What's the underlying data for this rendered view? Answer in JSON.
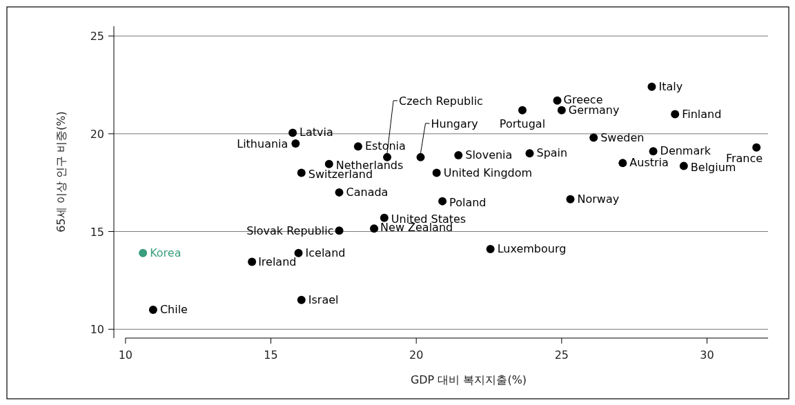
{
  "chart_data": {
    "type": "scatter",
    "xlabel": "GDP 대비 복지지출(%)",
    "ylabel": "65세 이상 인구 비중(%)",
    "xlim": [
      9.6,
      32.1
    ],
    "ylim": [
      9.55,
      25.5
    ],
    "xticks": [
      10,
      15,
      20,
      25,
      30
    ],
    "yticks": [
      10,
      15,
      20,
      25
    ],
    "grid": "y",
    "marker": "circle",
    "series": [
      {
        "name": "Italy",
        "color": "#000000",
        "x": [
          28.1
        ],
        "values": [
          22.4
        ]
      },
      {
        "name": "Greece",
        "color": "#000000",
        "x": [
          24.85
        ],
        "values": [
          21.7
        ]
      },
      {
        "name": "Germany",
        "color": "#000000",
        "x": [
          25.0
        ],
        "values": [
          21.2
        ]
      },
      {
        "name": "Portugal",
        "color": "#000000",
        "x": [
          23.65
        ],
        "values": [
          21.2
        ]
      },
      {
        "name": "Finland",
        "color": "#000000",
        "x": [
          28.9
        ],
        "values": [
          21.0
        ]
      },
      {
        "name": "Czech Republic",
        "color": "#000000",
        "x": [
          19.0
        ],
        "values": [
          18.8
        ]
      },
      {
        "name": "Hungary",
        "color": "#000000",
        "x": [
          20.15
        ],
        "values": [
          18.8
        ]
      },
      {
        "name": "Latvia",
        "color": "#000000",
        "x": [
          15.75
        ],
        "values": [
          20.05
        ]
      },
      {
        "name": "Lithuania",
        "color": "#000000",
        "x": [
          15.85
        ],
        "values": [
          19.5
        ]
      },
      {
        "name": "Estonia",
        "color": "#000000",
        "x": [
          18.0
        ],
        "values": [
          19.35
        ]
      },
      {
        "name": "Sweden",
        "color": "#000000",
        "x": [
          26.1
        ],
        "values": [
          19.8
        ]
      },
      {
        "name": "Denmark",
        "color": "#000000",
        "x": [
          28.15
        ],
        "values": [
          19.1
        ]
      },
      {
        "name": "France",
        "color": "#000000",
        "x": [
          31.7
        ],
        "values": [
          19.3
        ]
      },
      {
        "name": "Slovenia",
        "color": "#000000",
        "x": [
          21.45
        ],
        "values": [
          18.9
        ]
      },
      {
        "name": "Spain",
        "color": "#000000",
        "x": [
          23.9
        ],
        "values": [
          19.0
        ]
      },
      {
        "name": "Austria",
        "color": "#000000",
        "x": [
          27.1
        ],
        "values": [
          18.5
        ]
      },
      {
        "name": "Belgium",
        "color": "#000000",
        "x": [
          29.2
        ],
        "values": [
          18.35
        ]
      },
      {
        "name": "Netherlands",
        "color": "#000000",
        "x": [
          17.0
        ],
        "values": [
          18.45
        ]
      },
      {
        "name": "Switzerland",
        "color": "#000000",
        "x": [
          16.05
        ],
        "values": [
          18.0
        ]
      },
      {
        "name": "United Kingdom",
        "color": "#000000",
        "x": [
          20.7
        ],
        "values": [
          18.0
        ]
      },
      {
        "name": "Canada",
        "color": "#000000",
        "x": [
          17.35
        ],
        "values": [
          17.0
        ]
      },
      {
        "name": "Poland",
        "color": "#000000",
        "x": [
          20.9
        ],
        "values": [
          16.55
        ]
      },
      {
        "name": "Norway",
        "color": "#000000",
        "x": [
          25.3
        ],
        "values": [
          16.65
        ]
      },
      {
        "name": "United States",
        "color": "#000000",
        "x": [
          18.9
        ],
        "values": [
          15.7
        ]
      },
      {
        "name": "Slovak Republic",
        "color": "#000000",
        "x": [
          17.35
        ],
        "values": [
          15.05
        ]
      },
      {
        "name": "New Zealand",
        "color": "#000000",
        "x": [
          18.55
        ],
        "values": [
          15.15
        ]
      },
      {
        "name": "Luxembourg",
        "color": "#000000",
        "x": [
          22.55
        ],
        "values": [
          14.1
        ]
      },
      {
        "name": "Korea",
        "color": "#3a9e7e",
        "x": [
          10.6
        ],
        "values": [
          13.9
        ]
      },
      {
        "name": "Iceland",
        "color": "#000000",
        "x": [
          15.95
        ],
        "values": [
          13.9
        ]
      },
      {
        "name": "Ireland",
        "color": "#000000",
        "x": [
          14.35
        ],
        "values": [
          13.45
        ]
      },
      {
        "name": "Israel",
        "color": "#000000",
        "x": [
          16.05
        ],
        "values": [
          11.5
        ]
      },
      {
        "name": "Chile",
        "color": "#000000",
        "x": [
          10.95
        ],
        "values": [
          11.0
        ]
      }
    ]
  }
}
